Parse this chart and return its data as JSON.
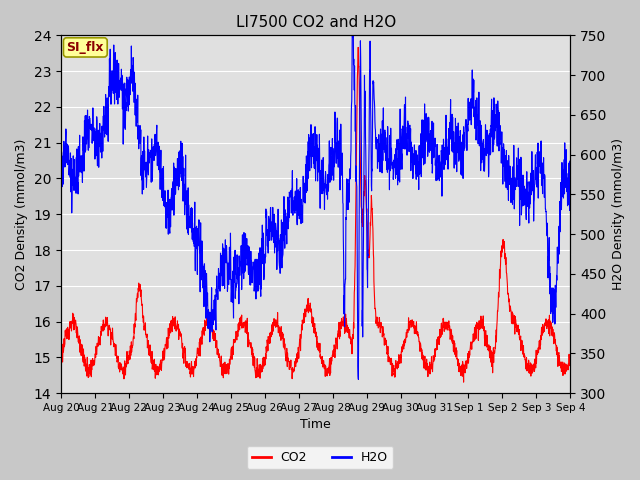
{
  "title": "LI7500 CO2 and H2O",
  "xlabel": "Time",
  "ylabel_left": "CO2 Density (mmol/m3)",
  "ylabel_right": "H2O Density (mmol/m3)",
  "ylim_left": [
    14.0,
    24.0
  ],
  "ylim_right": [
    300,
    750
  ],
  "yticks_left": [
    14.0,
    15.0,
    16.0,
    17.0,
    18.0,
    19.0,
    20.0,
    21.0,
    22.0,
    23.0,
    24.0
  ],
  "yticks_right": [
    300,
    350,
    400,
    450,
    500,
    550,
    600,
    650,
    700,
    750
  ],
  "x_labels": [
    "Aug 20",
    "Aug 21",
    "Aug 22",
    "Aug 23",
    "Aug 24",
    "Aug 25",
    "Aug 26",
    "Aug 27",
    "Aug 28",
    "Aug 29",
    "Aug 30",
    "Aug 31",
    "Sep 1",
    "Sep 2",
    "Sep 3",
    "Sep 4"
  ],
  "annotation_text": "SI_flx",
  "co2_color": "#ff0000",
  "h2o_color": "#0000ff",
  "bg_color": "#c8c8c8",
  "plot_bg_color": "#e0e0e0",
  "legend_co2": "CO2",
  "legend_h2o": "H2O",
  "n_points": 2000
}
